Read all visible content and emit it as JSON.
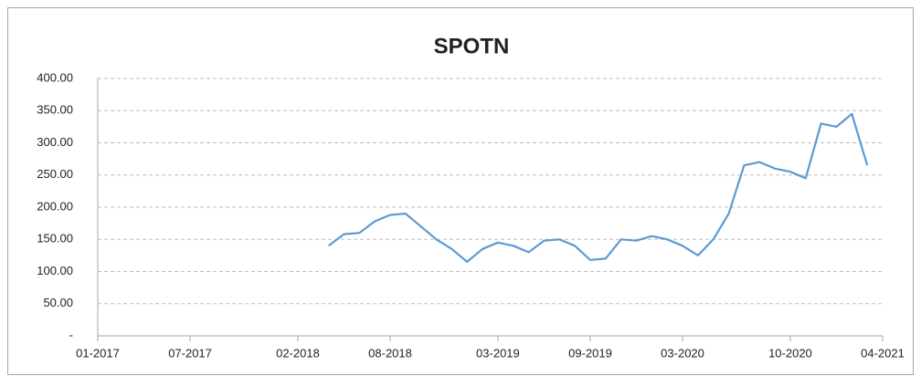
{
  "chart_data": {
    "type": "line",
    "title": "SPOTN",
    "x": [
      "2018-04",
      "2018-05",
      "2018-06",
      "2018-07",
      "2018-08",
      "2018-09",
      "2018-10",
      "2018-11",
      "2018-12",
      "2019-01",
      "2019-02",
      "2019-03",
      "2019-04",
      "2019-05",
      "2019-06",
      "2019-07",
      "2019-08",
      "2019-09",
      "2019-10",
      "2019-11",
      "2019-12",
      "2020-01",
      "2020-02",
      "2020-03",
      "2020-04",
      "2020-05",
      "2020-06",
      "2020-07",
      "2020-08",
      "2020-09",
      "2020-10",
      "2020-11",
      "2020-12",
      "2021-01",
      "2021-02",
      "2021-03"
    ],
    "series": [
      {
        "name": "SPOTN",
        "color": "#5b9bd5",
        "values": [
          140,
          158,
          160,
          178,
          188,
          190,
          170,
          150,
          135,
          115,
          135,
          145,
          140,
          130,
          148,
          150,
          140,
          118,
          120,
          150,
          148,
          155,
          150,
          140,
          125,
          150,
          190,
          265,
          270,
          260,
          255,
          245,
          330,
          325,
          345,
          265
        ]
      }
    ],
    "xlim": [
      "2017-01",
      "2021-04"
    ],
    "xticks": [
      {
        "value": "2017-01",
        "label": "01-2017"
      },
      {
        "value": "2017-07",
        "label": "07-2017"
      },
      {
        "value": "2018-02",
        "label": "02-2018"
      },
      {
        "value": "2018-08",
        "label": "08-2018"
      },
      {
        "value": "2019-03",
        "label": "03-2019"
      },
      {
        "value": "2019-09",
        "label": "09-2019"
      },
      {
        "value": "2020-03",
        "label": "03-2020"
      },
      {
        "value": "2020-10",
        "label": "10-2020"
      },
      {
        "value": "2021-04",
        "label": "04-2021"
      }
    ],
    "ylim": [
      0,
      400
    ],
    "yticks": [
      {
        "value": 0,
        "label": "-"
      },
      {
        "value": 50,
        "label": "50.00"
      },
      {
        "value": 100,
        "label": "100.00"
      },
      {
        "value": 150,
        "label": "150.00"
      },
      {
        "value": 200,
        "label": "200.00"
      },
      {
        "value": 250,
        "label": "250.00"
      },
      {
        "value": 300,
        "label": "300.00"
      },
      {
        "value": 350,
        "label": "350.00"
      },
      {
        "value": 400,
        "label": "400.00"
      }
    ],
    "grid": true
  }
}
